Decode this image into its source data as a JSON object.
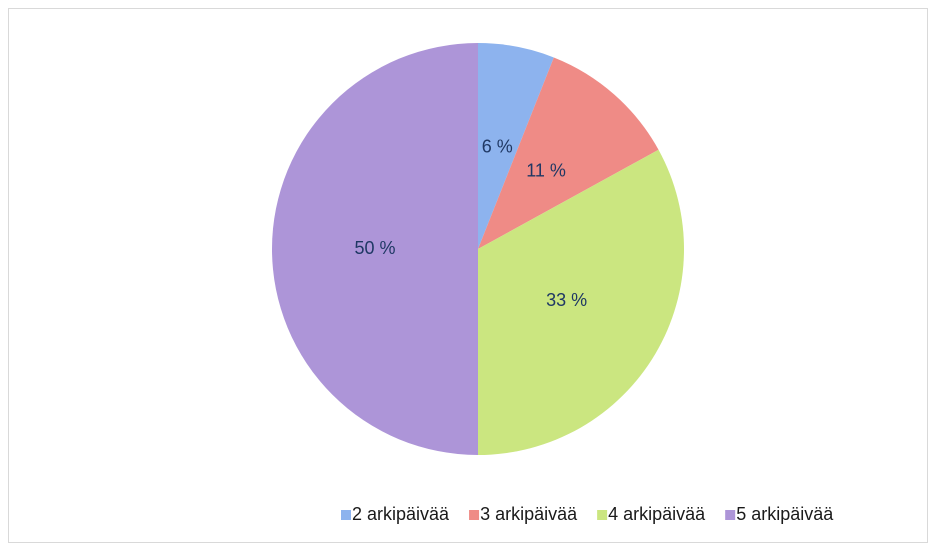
{
  "chart_data": {
    "type": "pie",
    "categories": [
      "2 arkipäivää",
      "3 arkipäivää",
      "4 arkipäivää",
      "5 arkipäivää"
    ],
    "values": [
      6,
      11,
      33,
      50
    ],
    "value_labels": [
      "6 %",
      "11 %",
      "33 %",
      "50 %"
    ],
    "colors": [
      "#8db3ee",
      "#ef8b86",
      "#cbe680",
      "#ad95d8"
    ],
    "legend": "bottom"
  }
}
